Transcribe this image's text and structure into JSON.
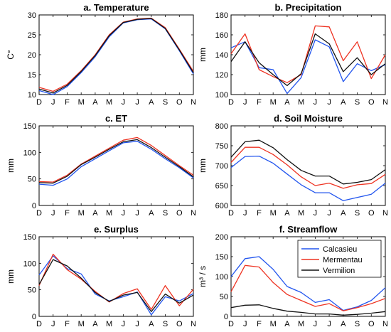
{
  "series_colors": {
    "Calcasieu": "#2255ee",
    "Mermentau": "#ee3322",
    "Vermilion": "#111111"
  },
  "legend": {
    "panel": 5,
    "placement": "top-right",
    "entries": [
      "Calcasieu",
      "Mermentau",
      "Vermilion"
    ]
  },
  "chart_data": [
    {
      "type": "line",
      "title": "a. Temperature",
      "ylabel": "C°",
      "xlabel": "",
      "categories": [
        "D",
        "J",
        "F",
        "M",
        "A",
        "M",
        "J",
        "J",
        "A",
        "S",
        "O",
        "N"
      ],
      "ylim": [
        10,
        30
      ],
      "yticks": [
        10,
        15,
        20,
        25,
        30
      ],
      "grid": false,
      "series": [
        {
          "name": "Calcasieu",
          "values": [
            11.0,
            10.0,
            12.0,
            15.5,
            19.5,
            24.5,
            28.0,
            28.8,
            29.0,
            26.5,
            21.0,
            15.2
          ]
        },
        {
          "name": "Mermentau",
          "values": [
            11.8,
            10.8,
            12.6,
            16.0,
            20.0,
            25.0,
            28.2,
            29.0,
            29.2,
            26.8,
            21.4,
            15.8
          ]
        },
        {
          "name": "Vermilion",
          "values": [
            11.4,
            10.4,
            12.3,
            15.8,
            19.8,
            24.8,
            28.1,
            28.9,
            29.1,
            26.6,
            21.2,
            15.5
          ]
        }
      ]
    },
    {
      "type": "line",
      "title": "b. Precipitation",
      "ylabel": "mm",
      "xlabel": "",
      "categories": [
        "D",
        "J",
        "F",
        "M",
        "A",
        "M",
        "J",
        "J",
        "A",
        "S",
        "O",
        "N"
      ],
      "ylim": [
        100,
        180
      ],
      "yticks": [
        100,
        120,
        140,
        160,
        180
      ],
      "grid": false,
      "series": [
        {
          "name": "Calcasieu",
          "values": [
            147,
            153,
            127,
            125,
            101,
            117,
            155,
            148,
            113,
            131,
            124,
            130
          ]
        },
        {
          "name": "Mermentau",
          "values": [
            141,
            161,
            125,
            118,
            112,
            120,
            169,
            168,
            134,
            153,
            116,
            140
          ]
        },
        {
          "name": "Vermilion",
          "values": [
            133,
            153,
            132,
            120,
            109,
            121,
            161,
            151,
            123,
            137,
            120,
            131
          ]
        }
      ]
    },
    {
      "type": "line",
      "title": "c. ET",
      "ylabel": "mm",
      "xlabel": "",
      "categories": [
        "D",
        "J",
        "F",
        "M",
        "A",
        "M",
        "J",
        "J",
        "A",
        "S",
        "O",
        "N"
      ],
      "ylim": [
        0,
        150
      ],
      "yticks": [
        0,
        50,
        100,
        150
      ],
      "grid": false,
      "series": [
        {
          "name": "Calcasieu",
          "values": [
            40,
            38,
            50,
            73,
            88,
            103,
            118,
            121,
            106,
            88,
            71,
            52
          ]
        },
        {
          "name": "Mermentau",
          "values": [
            45,
            44,
            57,
            78,
            93,
            108,
            123,
            128,
            113,
            94,
            75,
            57
          ]
        },
        {
          "name": "Vermilion",
          "values": [
            43,
            42,
            55,
            77,
            91,
            106,
            120,
            124,
            109,
            91,
            73,
            54
          ]
        }
      ]
    },
    {
      "type": "line",
      "title": "d. Soil Moisture",
      "ylabel": "mm",
      "xlabel": "",
      "categories": [
        "D",
        "J",
        "F",
        "M",
        "A",
        "M",
        "J",
        "J",
        "A",
        "S",
        "O",
        "N"
      ],
      "ylim": [
        600,
        800
      ],
      "yticks": [
        600,
        650,
        700,
        750,
        800
      ],
      "grid": false,
      "series": [
        {
          "name": "Calcasieu",
          "values": [
            695,
            723,
            724,
            706,
            679,
            652,
            632,
            632,
            612,
            620,
            628,
            656
          ]
        },
        {
          "name": "Mermentau",
          "values": [
            708,
            746,
            746,
            728,
            702,
            672,
            650,
            656,
            643,
            652,
            655,
            678
          ]
        },
        {
          "name": "Vermilion",
          "values": [
            721,
            760,
            764,
            745,
            715,
            688,
            674,
            674,
            654,
            658,
            665,
            690
          ]
        }
      ]
    },
    {
      "type": "line",
      "title": "e. Surplus",
      "ylabel": "mm",
      "xlabel": "",
      "categories": [
        "D",
        "J",
        "F",
        "M",
        "A",
        "M",
        "J",
        "J",
        "A",
        "S",
        "O",
        "N"
      ],
      "ylim": [
        0,
        150
      ],
      "yticks": [
        0,
        50,
        100,
        150
      ],
      "grid": false,
      "series": [
        {
          "name": "Calcasieu",
          "values": [
            78,
            114,
            90,
            80,
            42,
            29,
            37,
            46,
            3,
            37,
            29,
            43
          ]
        },
        {
          "name": "Mermentau",
          "values": [
            58,
            117,
            88,
            70,
            47,
            27,
            43,
            52,
            13,
            58,
            20,
            51
          ]
        },
        {
          "name": "Vermilion",
          "values": [
            60,
            107,
            95,
            72,
            45,
            28,
            40,
            45,
            9,
            42,
            25,
            40
          ]
        }
      ]
    },
    {
      "type": "line",
      "title": "f. Streamflow",
      "ylabel": "m³ / s",
      "xlabel": "",
      "categories": [
        "D",
        "J",
        "F",
        "M",
        "A",
        "M",
        "J",
        "J",
        "A",
        "S",
        "O",
        "N"
      ],
      "ylim": [
        0,
        200
      ],
      "yticks": [
        0,
        50,
        100,
        150,
        200
      ],
      "grid": false,
      "series": [
        {
          "name": "Calcasieu",
          "values": [
            100,
            145,
            150,
            118,
            75,
            60,
            35,
            42,
            15,
            24,
            40,
            72
          ]
        },
        {
          "name": "Mermentau",
          "values": [
            62,
            128,
            124,
            85,
            55,
            40,
            25,
            32,
            14,
            22,
            32,
            45
          ]
        },
        {
          "name": "Vermilion",
          "values": [
            22,
            28,
            29,
            20,
            13,
            10,
            6,
            6,
            3,
            5,
            8,
            12
          ]
        }
      ]
    }
  ]
}
